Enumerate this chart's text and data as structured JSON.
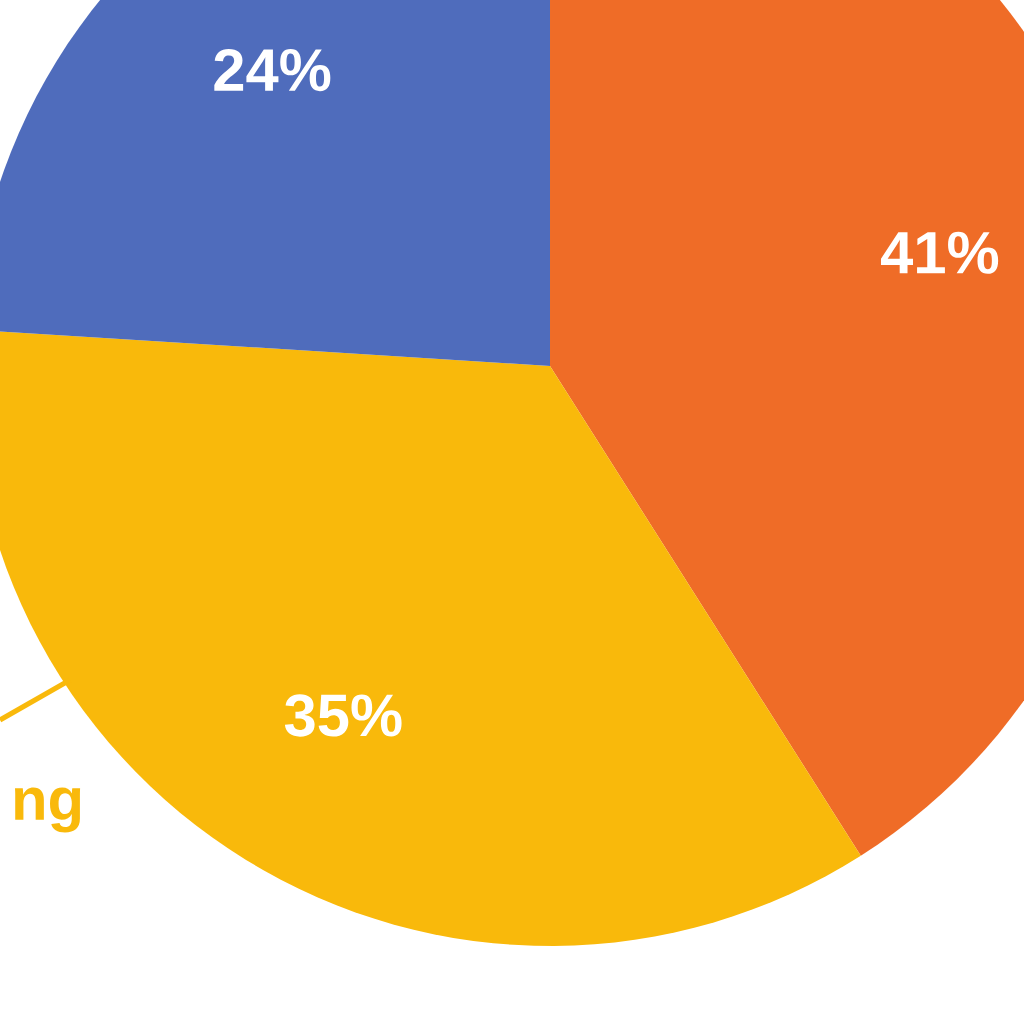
{
  "chart_data": {
    "type": "pie",
    "categories": [
      null,
      null,
      null
    ],
    "values": [
      41,
      35,
      24
    ],
    "colors": [
      "#ef6c27",
      "#f9b90b",
      "#4f6cbc"
    ],
    "value_labels": [
      "41%",
      "35%",
      "24%"
    ],
    "annotations": [
      "ng"
    ]
  }
}
